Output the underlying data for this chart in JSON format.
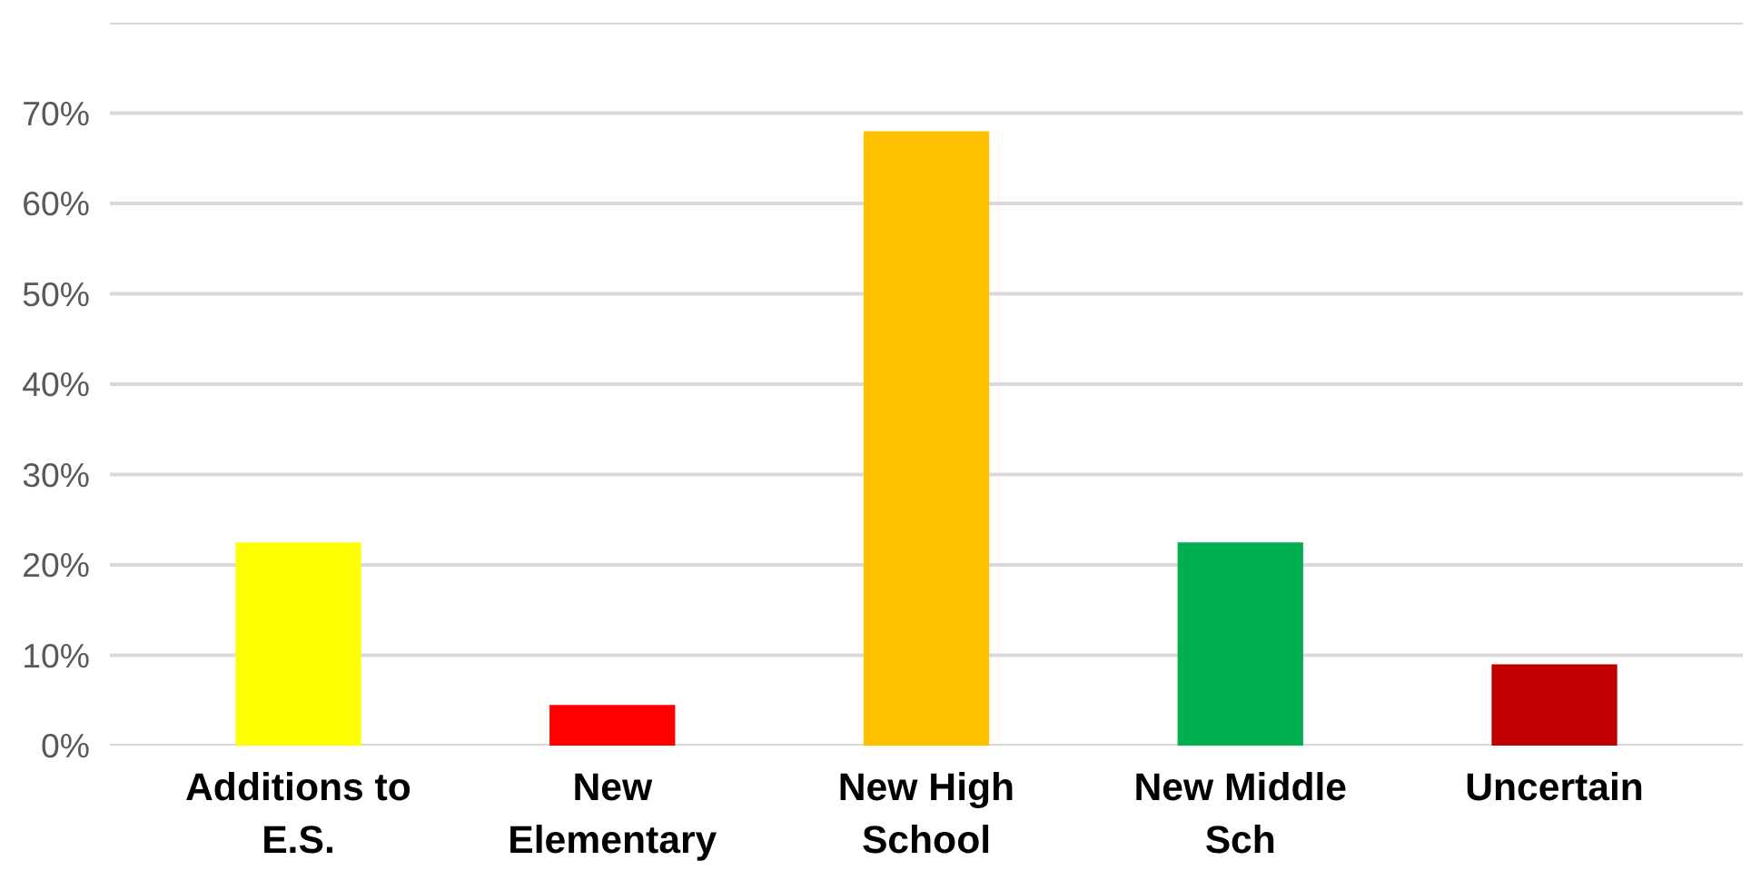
{
  "chart_data": {
    "type": "bar",
    "categories": [
      "Additions to E.S.",
      "New Elementary",
      "New High School",
      "New Middle Sch",
      "Uncertain"
    ],
    "values": [
      22.5,
      4.5,
      68,
      22.5,
      9
    ],
    "colors": [
      "#ffff00",
      "#ff0000",
      "#ffc000",
      "#00b050",
      "#c00000"
    ],
    "ylim": [
      0,
      80
    ],
    "yticks": [
      {
        "value": 0,
        "label": "0%"
      },
      {
        "value": 10,
        "label": "10%"
      },
      {
        "value": 20,
        "label": "20%"
      },
      {
        "value": 30,
        "label": "30%"
      },
      {
        "value": 40,
        "label": "40%"
      },
      {
        "value": 50,
        "label": "50%"
      },
      {
        "value": 60,
        "label": "60%"
      },
      {
        "value": 70,
        "label": "70%"
      },
      {
        "value": 80,
        "label": null
      }
    ],
    "grid": "y"
  }
}
